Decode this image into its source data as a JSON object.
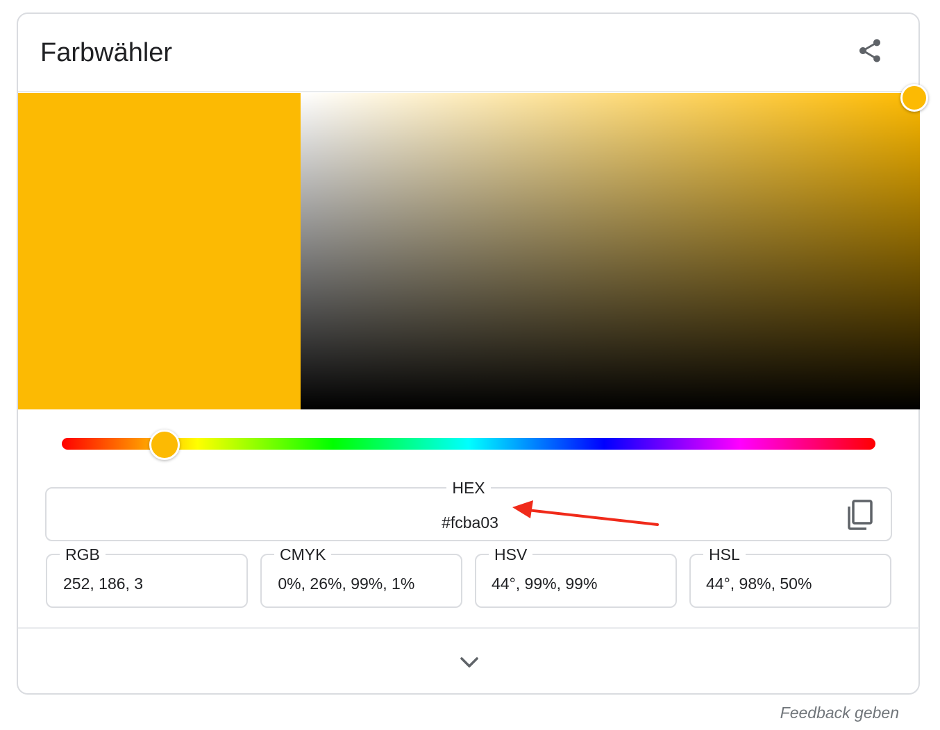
{
  "widget": {
    "title": "Farbwähler",
    "share_icon": "share-icon",
    "current_color": "#fcba03",
    "hue_degrees": 44,
    "saturation_fraction": 0.99,
    "value_fraction": 0.99
  },
  "fields": {
    "hex": {
      "label": "HEX",
      "value": "#fcba03",
      "copy_icon": "copy-icon"
    },
    "rgb": {
      "label": "RGB",
      "value": "252, 186, 3"
    },
    "cmyk": {
      "label": "CMYK",
      "value": " 0%, 26%, 99%, 1%"
    },
    "hsv": {
      "label": "HSV",
      "value": "44°, 99%, 99%"
    },
    "hsl": {
      "label": "HSL",
      "value": "44°, 98%, 50%"
    }
  },
  "footer": {
    "expand_icon": "chevron-down-icon",
    "feedback_label": "Feedback geben"
  },
  "colors": {
    "annotation_arrow": "#f02a1a",
    "handle_fill": "#fcba03",
    "border": "#dadce0",
    "icon": "#5f6368"
  }
}
